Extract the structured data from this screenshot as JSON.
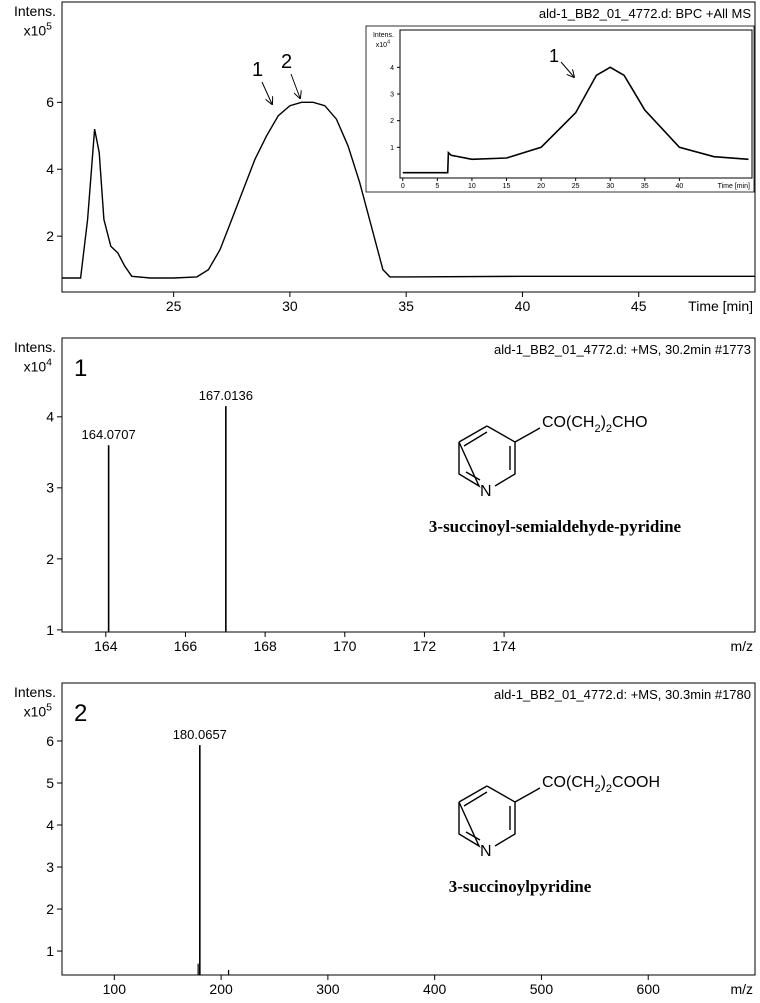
{
  "chart_data": [
    {
      "type": "line",
      "title": "ald-1_BB2_01_4772.d: BPC +All MS",
      "y_label": "Intens.",
      "y_scale": "x10",
      "y_exponent": "5",
      "x_label": "Time [min]",
      "x": [
        20.2,
        21.0,
        21.3,
        21.6,
        21.8,
        22.0,
        22.3,
        22.6,
        22.9,
        23.2,
        24,
        25,
        26,
        26.5,
        27,
        27.5,
        28,
        28.5,
        29,
        29.5,
        30,
        30.5,
        31,
        31.5,
        32,
        32.5,
        33,
        33.5,
        34,
        34.3,
        35,
        40,
        45,
        50
      ],
      "values": [
        0.75,
        0.75,
        2.5,
        5.2,
        4.5,
        2.5,
        1.7,
        1.5,
        1.1,
        0.8,
        0.75,
        0.75,
        0.78,
        1.0,
        1.6,
        2.5,
        3.4,
        4.3,
        5.0,
        5.6,
        5.9,
        6.0,
        6.0,
        5.9,
        5.5,
        4.7,
        3.6,
        2.3,
        1.0,
        0.78,
        0.78,
        0.8,
        0.8,
        0.8
      ],
      "color": "#000000",
      "xlim": [
        20.2,
        50
      ],
      "ylim": [
        0.33,
        9
      ],
      "xticks": [
        25,
        30,
        35,
        40,
        45
      ],
      "yticks": [
        2,
        4,
        6
      ],
      "annotations": [
        "1",
        "2"
      ]
    },
    {
      "type": "line",
      "y_label": "Intens.",
      "y_scale": "x10",
      "y_exponent": "4",
      "x_label": "Time [min]",
      "x": [
        0,
        6.5,
        6.6,
        7,
        10,
        15,
        20,
        25,
        28,
        30,
        32,
        35,
        40,
        45,
        50
      ],
      "values": [
        0.05,
        0.05,
        0.8,
        0.7,
        0.55,
        0.6,
        1.0,
        2.3,
        3.7,
        4.0,
        3.7,
        2.4,
        1.0,
        0.65,
        0.55
      ],
      "color": "#000000",
      "xlim": [
        -0.4,
        50.5
      ],
      "ylim": [
        -0.15,
        5.4
      ],
      "xticks": [
        0,
        5,
        10,
        15,
        20,
        25,
        30,
        35,
        40
      ],
      "yticks": [
        1,
        2,
        3,
        4
      ],
      "annotations": [
        "1"
      ]
    },
    {
      "type": "stick",
      "panel_label": "1",
      "title": "ald-1_BB2_01_4772.d: +MS, 30.2min #1773",
      "y_label": "Intens.",
      "y_scale": "x10",
      "y_exponent": "4",
      "x_label": "m/z",
      "x": [
        164.0707,
        167.0136
      ],
      "values": [
        3.6,
        4.15
      ],
      "color": "#000000",
      "xlim": [
        162.9,
        180.3
      ],
      "ylim": [
        0.97,
        5.11
      ],
      "xticks": [
        164,
        166,
        168,
        170,
        172,
        174
      ],
      "yticks": [
        1,
        2,
        3,
        4
      ],
      "structure": {
        "substituent": [
          "CO(CH",
          "2",
          ")",
          "2",
          "CHO"
        ],
        "heteroatom": "N",
        "name": "3-succinoyl-semialdehyde-pyridine"
      }
    },
    {
      "type": "stick",
      "panel_label": "2",
      "title": "ald-1_BB2_01_4772.d: +MS, 30.3min #1780",
      "y_label": "Intens.",
      "y_scale": "x10",
      "y_exponent": "5",
      "x_label": "m/z",
      "x": [
        180.0657
      ],
      "values": [
        5.9
      ],
      "minor_x": [
        178.5,
        207
      ],
      "minor_values": [
        0.7,
        0.55
      ],
      "color": "#000000",
      "xlim": [
        51,
        700
      ],
      "ylim": [
        0.43,
        7.38
      ],
      "xticks": [
        100,
        200,
        300,
        400,
        500,
        600
      ],
      "yticks": [
        1,
        2,
        3,
        4,
        5,
        6
      ],
      "structure": {
        "substituent": [
          "CO(CH",
          "2",
          ")",
          "2",
          "COOH"
        ],
        "heteroatom": "N",
        "name": "3-succinoylpyridine"
      }
    }
  ]
}
